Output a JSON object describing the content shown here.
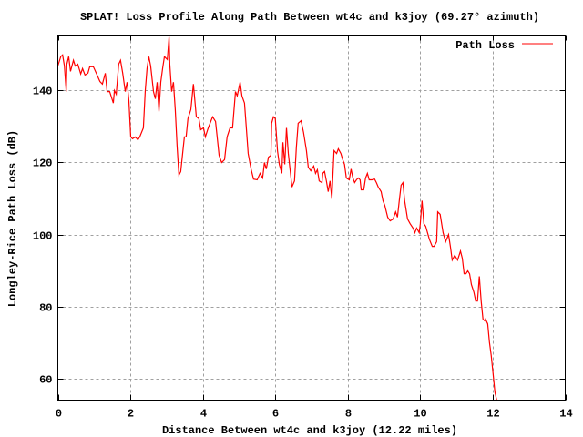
{
  "chart_data": {
    "type": "line",
    "title": "SPLAT! Loss Profile Along Path Between wt4c and k3joy (69.27° azimuth)",
    "xlabel": "Distance Between wt4c and k3joy (12.22 miles)",
    "ylabel": "Longley-Rice Path Loss (dB)",
    "xlim": [
      0,
      14
    ],
    "ylim": [
      54,
      155.4
    ],
    "xticks": [
      0,
      2,
      4,
      6,
      8,
      10,
      12,
      14
    ],
    "yticks": [
      60,
      80,
      100,
      120,
      140
    ],
    "grid": true,
    "legend_position": "top-right",
    "series": [
      {
        "name": "Path Loss",
        "color": "#ff0000",
        "x": [
          0,
          0.08,
          0.13,
          0.18,
          0.23,
          0.25,
          0.3,
          0.35,
          0.43,
          0.48,
          0.55,
          0.63,
          0.68,
          0.75,
          0.83,
          0.88,
          0.98,
          1.06,
          1.16,
          1.23,
          1.31,
          1.36,
          1.43,
          1.53,
          1.56,
          1.61,
          1.68,
          1.73,
          1.79,
          1.86,
          1.91,
          1.96,
          2.01,
          2.06,
          2.14,
          2.21,
          2.26,
          2.36,
          2.41,
          2.46,
          2.51,
          2.56,
          2.64,
          2.69,
          2.74,
          2.79,
          2.84,
          2.89,
          2.94,
          3.02,
          3.07,
          3.09,
          3.14,
          3.19,
          3.24,
          3.29,
          3.34,
          3.39,
          3.49,
          3.54,
          3.59,
          3.67,
          3.74,
          3.82,
          3.89,
          3.94,
          4.02,
          4.07,
          4.15,
          4.2,
          4.27,
          4.35,
          4.45,
          4.52,
          4.6,
          4.67,
          4.75,
          4.82,
          4.9,
          4.95,
          5.03,
          5.08,
          5.15,
          5.2,
          5.25,
          5.33,
          5.4,
          5.5,
          5.58,
          5.65,
          5.7,
          5.75,
          5.81,
          5.88,
          5.9,
          5.95,
          6.0,
          6.06,
          6.11,
          6.18,
          6.21,
          6.26,
          6.31,
          6.36,
          6.42,
          6.46,
          6.53,
          6.58,
          6.63,
          6.71,
          6.78,
          6.86,
          6.91,
          6.98,
          7.06,
          7.11,
          7.16,
          7.21,
          7.29,
          7.31,
          7.36,
          7.41,
          7.46,
          7.51,
          7.56,
          7.62,
          7.69,
          7.74,
          7.81,
          7.86,
          7.91,
          7.96,
          8.04,
          8.09,
          8.14,
          8.19,
          8.24,
          8.29,
          8.34,
          8.37,
          8.44,
          8.49,
          8.54,
          8.59,
          8.67,
          8.74,
          8.79,
          8.84,
          8.92,
          8.97,
          9.02,
          9.1,
          9.17,
          9.25,
          9.32,
          9.37,
          9.42,
          9.47,
          9.52,
          9.57,
          9.65,
          9.72,
          9.8,
          9.85,
          9.9,
          9.97,
          10.0,
          10.05,
          10.1,
          10.15,
          10.2,
          10.25,
          10.33,
          10.38,
          10.45,
          10.48,
          10.55,
          10.63,
          10.7,
          10.78,
          10.83,
          10.88,
          10.95,
          11.03,
          11.11,
          11.16,
          11.21,
          11.26,
          11.31,
          11.36,
          11.41,
          11.48,
          11.53,
          11.58,
          11.63,
          11.68,
          11.73,
          11.78,
          11.8,
          11.86,
          11.91,
          11.96,
          12.01,
          12.06,
          12.11
        ],
        "y": [
          146.8,
          149.4,
          149.9,
          146.8,
          139.7,
          147.3,
          149.4,
          145.3,
          148.4,
          146.8,
          147.3,
          144.6,
          146.1,
          144.3,
          144.8,
          146.6,
          146.6,
          144.8,
          142.5,
          141.8,
          144.8,
          139.7,
          139.7,
          136.5,
          140,
          139,
          147.3,
          148.4,
          144.8,
          139.7,
          142.3,
          137.2,
          127.1,
          126.6,
          127.1,
          126.3,
          127.1,
          129.6,
          139.7,
          146.1,
          149.4,
          146.8,
          139.7,
          137.7,
          142.3,
          134.2,
          142.3,
          146.1,
          149.4,
          148.6,
          154.9,
          147.3,
          139.7,
          142.3,
          134.7,
          124.6,
          116.5,
          117.5,
          127.1,
          127.1,
          132.2,
          134.7,
          141.8,
          132.7,
          132.2,
          129.1,
          129.6,
          127.1,
          129.6,
          130.9,
          132.7,
          131.4,
          122,
          120,
          120.8,
          127.1,
          129.6,
          129.6,
          139.7,
          138.5,
          142.3,
          138.5,
          136.5,
          129.6,
          122.5,
          118.2,
          115.4,
          115.2,
          117,
          115.7,
          120,
          118.2,
          121.5,
          122,
          130.9,
          132.7,
          132.2,
          123.3,
          119.5,
          117,
          125.6,
          119.5,
          129.6,
          122.5,
          117,
          113.2,
          114.9,
          124.1,
          130.9,
          131.6,
          128.4,
          123.3,
          118.7,
          117.7,
          119,
          117,
          118,
          114.9,
          114.4,
          117,
          117.5,
          114.9,
          111.9,
          114.9,
          109.9,
          123.3,
          122.5,
          123.8,
          122.5,
          120.8,
          119.5,
          115.7,
          115.2,
          118.2,
          115.7,
          114.4,
          115.2,
          115.7,
          115.2,
          112.4,
          112.4,
          115.7,
          117,
          115.2,
          115.2,
          115.4,
          114.4,
          113.2,
          111.9,
          109.4,
          108.1,
          104.8,
          103.8,
          104.3,
          106.3,
          104.8,
          109.4,
          113.7,
          114.4,
          109.4,
          104.3,
          103,
          101.8,
          100.5,
          101.8,
          100.5,
          103,
          109.4,
          103,
          102.3,
          100.5,
          98.7,
          96.7,
          96.7,
          98,
          106.3,
          105.6,
          100.5,
          98,
          100,
          96.7,
          92.9,
          94.2,
          92.9,
          95.4,
          93.4,
          89.1,
          89.1,
          89.9,
          89.1,
          86.1,
          84,
          81.5,
          81.5,
          88.4,
          81.5,
          76.5,
          76,
          76.5,
          75.2,
          70.1,
          66.3,
          61.3,
          56.2,
          53.9
        ]
      }
    ]
  }
}
